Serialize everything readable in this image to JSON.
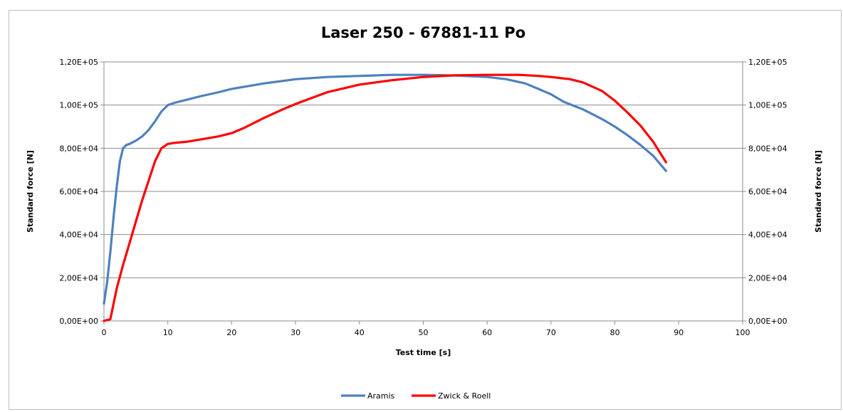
{
  "chart_data": {
    "type": "line",
    "title": "Laser 250 - 67881-11 Po",
    "xlabel": "Test time [s]",
    "ylabel_left": "Standard force [N]",
    "ylabel_right": "Standard force [N]",
    "xlim": [
      0,
      100
    ],
    "ylim": [
      0,
      120000
    ],
    "x_ticks": [
      0,
      10,
      20,
      30,
      40,
      50,
      60,
      70,
      80,
      90,
      100
    ],
    "x_tick_labels": [
      "0",
      "10",
      "20",
      "30",
      "40",
      "50",
      "60",
      "70",
      "80",
      "90",
      "100"
    ],
    "y_ticks": [
      0,
      20000,
      40000,
      60000,
      80000,
      100000,
      120000
    ],
    "y_tick_labels": [
      "0,00E+00",
      "2,00E+04",
      "4,00E+04",
      "6,00E+04",
      "8,00E+04",
      "1,00E+05",
      "1,20E+05"
    ],
    "grid": "horizontal",
    "legend_position": "bottom",
    "series": [
      {
        "name": "Aramis",
        "color": "#4f81bd",
        "x": [
          0,
          0.5,
          1,
          1.5,
          2,
          2.5,
          3,
          3.5,
          4,
          5,
          6,
          7,
          8,
          9,
          10,
          11,
          13,
          15,
          18,
          20,
          25,
          30,
          35,
          40,
          45,
          50,
          55,
          60,
          63,
          66,
          68,
          70,
          72,
          75,
          78,
          80,
          82,
          84,
          86,
          88
        ],
        "y": [
          8000,
          18000,
          32000,
          48000,
          62000,
          74000,
          80000,
          81500,
          82000,
          83500,
          85500,
          88500,
          92500,
          97000,
          100000,
          101000,
          102500,
          104000,
          106000,
          107500,
          110000,
          112000,
          113000,
          113500,
          114000,
          114000,
          113700,
          113000,
          112000,
          110000,
          107500,
          105000,
          101500,
          98000,
          93500,
          90000,
          86000,
          81500,
          76500,
          69500
        ]
      },
      {
        "name": "Zwick & Roell",
        "color": "#ff0000",
        "x": [
          0,
          1,
          1.5,
          2,
          3,
          4,
          5,
          6,
          7,
          8,
          9,
          10,
          11,
          13,
          15,
          18,
          20,
          22,
          25,
          28,
          30,
          35,
          40,
          45,
          50,
          55,
          60,
          65,
          68,
          70,
          73,
          75,
          78,
          80,
          82,
          84,
          86,
          88
        ],
        "y": [
          0,
          800,
          8000,
          15000,
          26000,
          36000,
          46000,
          56000,
          65000,
          74000,
          80000,
          82000,
          82500,
          83000,
          84000,
          85500,
          87000,
          89500,
          94000,
          98000,
          100500,
          106000,
          109500,
          111500,
          113000,
          113800,
          114000,
          114000,
          113500,
          113000,
          112000,
          110500,
          106500,
          102000,
          96500,
          90500,
          83000,
          73500
        ]
      }
    ]
  }
}
